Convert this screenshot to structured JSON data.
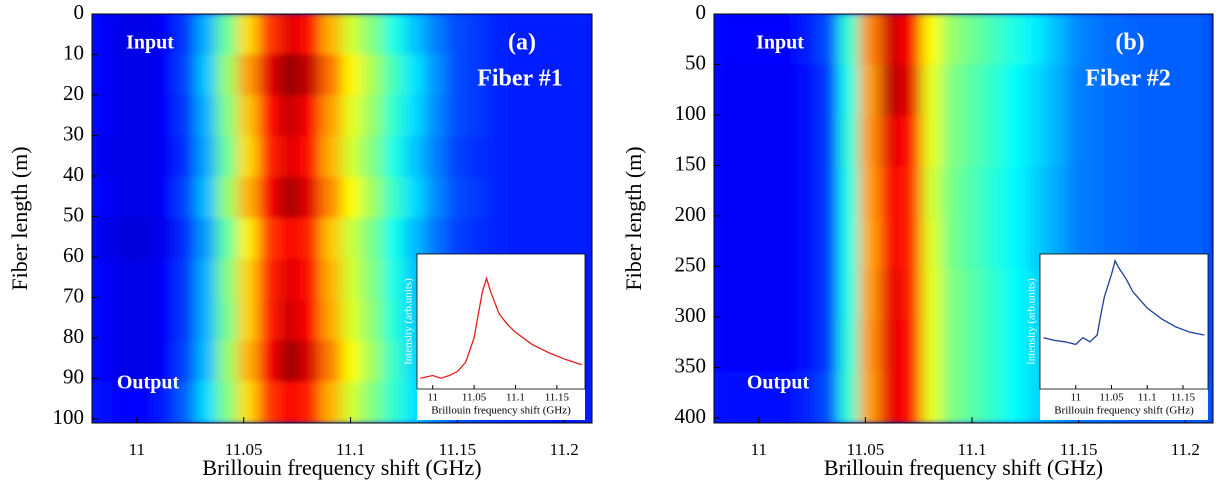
{
  "chart_data": [
    {
      "type": "heatmap",
      "xlabel": "Brillouin frequency shift (GHz)",
      "ylabel": "Fiber length (m)",
      "xlim": [
        10.979,
        11.213
      ],
      "xticks": [
        11,
        11.05,
        11.1,
        11.15,
        11.2
      ],
      "ylim": [
        0,
        101
      ],
      "yticks": [
        0,
        10,
        20,
        30,
        40,
        50,
        60,
        70,
        80,
        90,
        100
      ],
      "annotations": [
        "Input",
        "Output",
        "(a)",
        "Fiber #1"
      ],
      "z": [
        [
          0.12,
          0.1,
          0.1,
          0.12,
          0.18,
          0.3,
          0.48,
          0.66,
          0.82,
          0.9,
          0.86,
          0.7,
          0.58,
          0.5,
          0.4,
          0.32,
          0.25,
          0.2,
          0.18,
          0.16,
          0.15,
          0.15,
          0.15,
          0.15
        ],
        [
          0.12,
          0.1,
          0.1,
          0.12,
          0.19,
          0.32,
          0.52,
          0.72,
          0.9,
          0.98,
          0.93,
          0.76,
          0.63,
          0.54,
          0.44,
          0.35,
          0.27,
          0.2,
          0.18,
          0.16,
          0.15,
          0.15,
          0.15,
          0.15
        ],
        [
          0.12,
          0.1,
          0.1,
          0.12,
          0.18,
          0.3,
          0.5,
          0.68,
          0.86,
          0.93,
          0.88,
          0.72,
          0.6,
          0.52,
          0.42,
          0.34,
          0.26,
          0.2,
          0.18,
          0.16,
          0.15,
          0.15,
          0.15,
          0.15
        ],
        [
          0.11,
          0.1,
          0.1,
          0.12,
          0.17,
          0.29,
          0.48,
          0.66,
          0.84,
          0.9,
          0.86,
          0.7,
          0.58,
          0.5,
          0.4,
          0.32,
          0.25,
          0.19,
          0.17,
          0.16,
          0.15,
          0.15,
          0.15,
          0.15
        ],
        [
          0.12,
          0.1,
          0.1,
          0.12,
          0.19,
          0.31,
          0.52,
          0.7,
          0.88,
          0.96,
          0.9,
          0.74,
          0.62,
          0.53,
          0.43,
          0.34,
          0.26,
          0.2,
          0.18,
          0.16,
          0.15,
          0.15,
          0.15,
          0.15
        ],
        [
          0.11,
          0.09,
          0.09,
          0.11,
          0.17,
          0.28,
          0.47,
          0.64,
          0.82,
          0.88,
          0.84,
          0.68,
          0.57,
          0.49,
          0.39,
          0.31,
          0.24,
          0.19,
          0.17,
          0.16,
          0.15,
          0.15,
          0.15,
          0.15
        ],
        [
          0.12,
          0.1,
          0.1,
          0.12,
          0.18,
          0.3,
          0.5,
          0.67,
          0.84,
          0.9,
          0.86,
          0.7,
          0.58,
          0.5,
          0.4,
          0.32,
          0.25,
          0.2,
          0.18,
          0.16,
          0.15,
          0.15,
          0.15,
          0.15
        ],
        [
          0.12,
          0.1,
          0.1,
          0.12,
          0.18,
          0.3,
          0.49,
          0.67,
          0.85,
          0.92,
          0.87,
          0.71,
          0.59,
          0.51,
          0.41,
          0.33,
          0.25,
          0.2,
          0.18,
          0.16,
          0.15,
          0.15,
          0.15,
          0.15
        ],
        [
          0.12,
          0.1,
          0.1,
          0.12,
          0.19,
          0.31,
          0.52,
          0.7,
          0.88,
          0.97,
          0.91,
          0.75,
          0.62,
          0.53,
          0.43,
          0.34,
          0.26,
          0.2,
          0.18,
          0.16,
          0.15,
          0.15,
          0.15,
          0.15
        ],
        [
          0.14,
          0.13,
          0.13,
          0.15,
          0.22,
          0.34,
          0.5,
          0.66,
          0.82,
          0.88,
          0.84,
          0.7,
          0.58,
          0.5,
          0.42,
          0.35,
          0.28,
          0.23,
          0.2,
          0.18,
          0.17,
          0.16,
          0.15,
          0.15
        ]
      ],
      "inset": {
        "type": "line",
        "xlabel": "Brillouin frequency shift (GHz)",
        "ylabel": "Intensity (arb.units)",
        "color": "#e0201c",
        "xlim": [
          10.981,
          11.184
        ],
        "xticks": [
          11,
          11.05,
          11.1,
          11.15
        ],
        "ylim": [
          0,
          1
        ],
        "x": [
          10.985,
          11.0,
          11.01,
          11.02,
          11.03,
          11.04,
          11.05,
          11.055,
          11.06,
          11.065,
          11.07,
          11.08,
          11.09,
          11.1,
          11.12,
          11.14,
          11.16,
          11.18
        ],
        "values": [
          0.08,
          0.1,
          0.08,
          0.1,
          0.13,
          0.2,
          0.38,
          0.55,
          0.72,
          0.82,
          0.72,
          0.56,
          0.48,
          0.42,
          0.33,
          0.27,
          0.22,
          0.18
        ]
      }
    },
    {
      "type": "heatmap",
      "xlabel": "Brillouin frequency shift (GHz)",
      "ylabel": "Fiber length (m)",
      "xlim": [
        10.979,
        11.213
      ],
      "xticks": [
        11,
        11.05,
        11.1,
        11.15,
        11.2
      ],
      "ylim": [
        0,
        405
      ],
      "yticks": [
        0,
        50,
        100,
        150,
        200,
        250,
        300,
        350,
        400
      ],
      "annotations": [
        "Input",
        "Output",
        "(b)",
        "Fiber #2"
      ],
      "z": [
        [
          0.13,
          0.13,
          0.13,
          0.13,
          0.15,
          0.2,
          0.42,
          0.74,
          0.92,
          0.88,
          0.62,
          0.52,
          0.48,
          0.44,
          0.4,
          0.36,
          0.31,
          0.26,
          0.24,
          0.23,
          0.22,
          0.22,
          0.22,
          0.22
        ],
        [
          0.12,
          0.12,
          0.12,
          0.12,
          0.14,
          0.18,
          0.4,
          0.72,
          0.94,
          0.9,
          0.6,
          0.5,
          0.46,
          0.42,
          0.38,
          0.34,
          0.3,
          0.25,
          0.24,
          0.23,
          0.22,
          0.22,
          0.22,
          0.22
        ],
        [
          0.12,
          0.12,
          0.12,
          0.12,
          0.14,
          0.18,
          0.41,
          0.73,
          0.9,
          0.86,
          0.6,
          0.5,
          0.46,
          0.42,
          0.38,
          0.34,
          0.3,
          0.25,
          0.24,
          0.23,
          0.22,
          0.22,
          0.22,
          0.22
        ],
        [
          0.12,
          0.12,
          0.12,
          0.12,
          0.14,
          0.18,
          0.4,
          0.72,
          0.88,
          0.84,
          0.58,
          0.49,
          0.45,
          0.41,
          0.37,
          0.33,
          0.29,
          0.25,
          0.24,
          0.23,
          0.22,
          0.22,
          0.22,
          0.22
        ],
        [
          0.12,
          0.12,
          0.12,
          0.12,
          0.14,
          0.18,
          0.4,
          0.71,
          0.88,
          0.84,
          0.59,
          0.49,
          0.45,
          0.41,
          0.37,
          0.33,
          0.29,
          0.25,
          0.24,
          0.23,
          0.22,
          0.22,
          0.22,
          0.22
        ],
        [
          0.12,
          0.12,
          0.12,
          0.12,
          0.14,
          0.18,
          0.4,
          0.72,
          0.9,
          0.85,
          0.6,
          0.5,
          0.46,
          0.42,
          0.38,
          0.34,
          0.3,
          0.25,
          0.24,
          0.23,
          0.22,
          0.22,
          0.22,
          0.22
        ],
        [
          0.12,
          0.12,
          0.12,
          0.12,
          0.14,
          0.18,
          0.41,
          0.73,
          0.9,
          0.86,
          0.6,
          0.5,
          0.46,
          0.42,
          0.38,
          0.34,
          0.3,
          0.25,
          0.24,
          0.23,
          0.22,
          0.22,
          0.22,
          0.22
        ],
        [
          0.14,
          0.14,
          0.14,
          0.14,
          0.16,
          0.2,
          0.42,
          0.72,
          0.9,
          0.86,
          0.6,
          0.5,
          0.46,
          0.42,
          0.38,
          0.34,
          0.3,
          0.26,
          0.25,
          0.24,
          0.23,
          0.23,
          0.23,
          0.23
        ]
      ],
      "inset": {
        "type": "line",
        "xlabel": "Brillouin frequency shift (GHz)",
        "ylabel": "Intensity (arb.units)",
        "color": "#1f3f9a",
        "xlim": [
          10.95,
          11.185
        ],
        "xticks": [
          11,
          11.05,
          11.1,
          11.15
        ],
        "ylim": [
          0,
          1
        ],
        "x": [
          10.955,
          10.97,
          10.985,
          11.0,
          11.01,
          11.02,
          11.03,
          11.035,
          11.04,
          11.05,
          11.055,
          11.06,
          11.07,
          11.08,
          11.1,
          11.12,
          11.14,
          11.16,
          11.18
        ],
        "values": [
          0.38,
          0.36,
          0.35,
          0.33,
          0.38,
          0.35,
          0.4,
          0.55,
          0.68,
          0.85,
          0.95,
          0.9,
          0.82,
          0.72,
          0.6,
          0.52,
          0.46,
          0.42,
          0.4
        ]
      }
    }
  ]
}
